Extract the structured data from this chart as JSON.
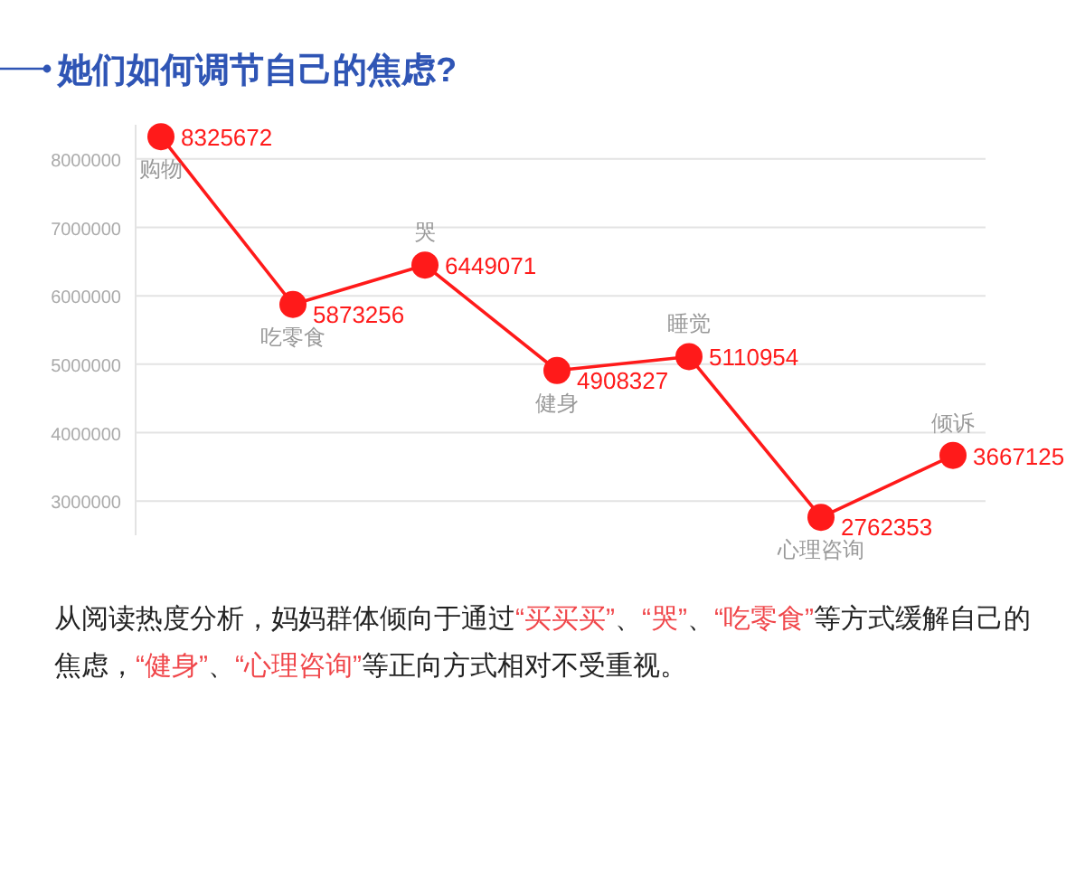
{
  "chart_data": {
    "type": "line",
    "title": "她们如何调节自己的焦虑?",
    "categories": [
      "购物",
      "吃零食",
      "哭",
      "健身",
      "睡觉",
      "心理咨询",
      "倾诉"
    ],
    "series": [
      {
        "color": "#ff1a1a",
        "values": [
          8325672,
          5873256,
          6449071,
          4908327,
          5110954,
          2762353,
          3667125
        ]
      }
    ],
    "ylim": [
      2500000,
      8500000
    ],
    "yticks": [
      3000000,
      4000000,
      5000000,
      6000000,
      7000000,
      8000000
    ],
    "grid": "y",
    "marker": "circle",
    "line_style": "solid",
    "data_labels": true,
    "annotations": [
      "从阅读热度分析，妈妈群体倾向于通过“买买买”、“哭”、“吃零食”等方式缓解自己的焦虑，“健身”、“心理咨询”等正向方式相对不受重视。"
    ]
  }
}
